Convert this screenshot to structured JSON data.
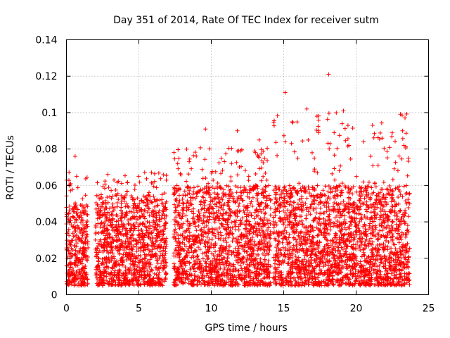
{
  "chart_data": {
    "type": "scatter",
    "title": "Day 351 of 2014, Rate Of TEC Index for receiver sutm",
    "xlabel": "GPS time / hours",
    "ylabel": "ROTI / TECUs",
    "xlim": [
      0,
      25
    ],
    "ylim": [
      0,
      0.14
    ],
    "xticks": [
      "0",
      "5",
      "10",
      "15",
      "20",
      "25"
    ],
    "yticks": [
      "0",
      "0.02",
      "0.04",
      "0.06",
      "0.08",
      "0.1",
      "0.12",
      "0.14"
    ],
    "grid": true,
    "marker": "+",
    "color": "#ff0000",
    "description_series": {
      "name": "ROTI",
      "segments": [
        {
          "x_range": [
            0.0,
            1.5
          ],
          "typical_range": [
            0.005,
            0.05
          ],
          "peak_max": 0.076
        },
        {
          "x_range": [
            2.0,
            6.9
          ],
          "typical_range": [
            0.005,
            0.055
          ],
          "peak_max": 0.073
        },
        {
          "x_range": [
            7.4,
            14.1
          ],
          "typical_range": [
            0.005,
            0.06
          ],
          "peak_max": 0.09
        },
        {
          "x_range": [
            14.3,
            23.7
          ],
          "typical_range": [
            0.005,
            0.06
          ],
          "peak_max": 0.121
        }
      ],
      "notable_points": [
        {
          "x": 0.6,
          "y": 0.076
        },
        {
          "x": 0.7,
          "y": 0.065
        },
        {
          "x": 9.6,
          "y": 0.091
        },
        {
          "x": 11.8,
          "y": 0.09
        },
        {
          "x": 13.3,
          "y": 0.085
        },
        {
          "x": 15.1,
          "y": 0.111
        },
        {
          "x": 15.1,
          "y": 0.084
        },
        {
          "x": 17.3,
          "y": 0.098
        },
        {
          "x": 17.4,
          "y": 0.09
        },
        {
          "x": 18.1,
          "y": 0.121
        },
        {
          "x": 18.2,
          "y": 0.083
        },
        {
          "x": 19.5,
          "y": 0.082
        },
        {
          "x": 21.0,
          "y": 0.076
        },
        {
          "x": 23.2,
          "y": 0.09
        },
        {
          "x": 23.3,
          "y": 0.082
        }
      ]
    }
  }
}
